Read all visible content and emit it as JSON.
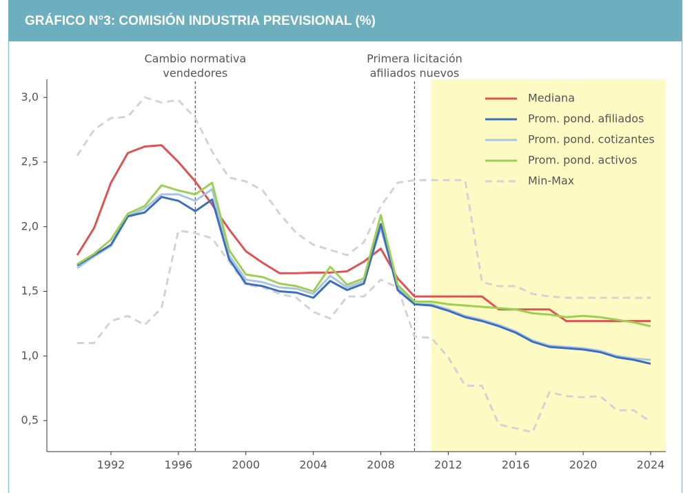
{
  "chart_data": {
    "type": "line",
    "title": "GRÁFICO N°3: COMISIÓN INDUSTRIA PREVISIONAL (%)",
    "x": [
      1990,
      1991,
      1992,
      1993,
      1994,
      1995,
      1996,
      1997,
      1998,
      1999,
      2000,
      2001,
      2002,
      2003,
      2004,
      2005,
      2006,
      2007,
      2008,
      2009,
      2010,
      2011,
      2012,
      2013,
      2014,
      2015,
      2016,
      2017,
      2018,
      2019,
      2020,
      2021,
      2022,
      2023,
      2024
    ],
    "xlim": [
      1988.2,
      2024.9
    ],
    "xticks": [
      1992,
      1996,
      2000,
      2004,
      2008,
      2012,
      2016,
      2020,
      2024
    ],
    "ylim": [
      0.26,
      3.14
    ],
    "yticks": [
      {
        "value": 0.5,
        "label": "0,5"
      },
      {
        "value": 1.0,
        "label": "1,0"
      },
      {
        "value": 1.5,
        "label": "1,5"
      },
      {
        "value": 2.0,
        "label": "2,0"
      },
      {
        "value": 2.5,
        "label": "2,5"
      },
      {
        "value": 3.0,
        "label": "3,0"
      }
    ],
    "series": [
      {
        "name": "Mediana",
        "color": "#e05152",
        "values": [
          1.78,
          1.99,
          2.34,
          2.57,
          2.62,
          2.63,
          2.5,
          2.35,
          2.17,
          1.98,
          1.81,
          1.72,
          1.64,
          1.64,
          1.645,
          1.645,
          1.655,
          1.73,
          1.83,
          1.6,
          1.46,
          1.46,
          1.46,
          1.46,
          1.46,
          1.36,
          1.36,
          1.36,
          1.36,
          1.27,
          1.27,
          1.27,
          1.27,
          1.27,
          1.27
        ]
      },
      {
        "name": "Prom. pond. afiliados",
        "color": "#3a6fbf",
        "values": [
          1.7,
          1.78,
          1.86,
          2.08,
          2.11,
          2.23,
          2.2,
          2.12,
          2.21,
          1.75,
          1.56,
          1.54,
          1.5,
          1.49,
          1.45,
          1.58,
          1.51,
          1.56,
          2.02,
          1.51,
          1.4,
          1.39,
          1.35,
          1.3,
          1.27,
          1.23,
          1.18,
          1.11,
          1.07,
          1.06,
          1.05,
          1.03,
          0.99,
          0.97,
          0.94
        ]
      },
      {
        "name": "Prom. pond. cotizantes",
        "color": "#a9c3e4",
        "values": [
          1.68,
          1.77,
          1.85,
          2.08,
          2.14,
          2.25,
          2.25,
          2.2,
          2.29,
          1.78,
          1.59,
          1.57,
          1.53,
          1.52,
          1.48,
          1.62,
          1.53,
          1.58,
          1.99,
          1.53,
          1.4,
          1.4,
          1.36,
          1.31,
          1.28,
          1.24,
          1.19,
          1.12,
          1.08,
          1.07,
          1.06,
          1.04,
          1.0,
          0.98,
          0.97
        ]
      },
      {
        "name": "Prom. pond. activos",
        "color": "#9dcf55",
        "values": [
          1.71,
          1.79,
          1.9,
          2.1,
          2.16,
          2.32,
          2.28,
          2.25,
          2.34,
          1.82,
          1.63,
          1.61,
          1.56,
          1.54,
          1.5,
          1.69,
          1.55,
          1.6,
          2.09,
          1.55,
          1.42,
          1.42,
          1.4,
          1.39,
          1.38,
          1.37,
          1.36,
          1.33,
          1.32,
          1.3,
          1.31,
          1.3,
          1.28,
          1.26,
          1.23
        ]
      },
      {
        "name": "Min-Max",
        "color": "#d3d3d6",
        "dashed": true,
        "values": [
          2.55,
          2.75,
          2.84,
          2.85,
          3.0,
          2.96,
          2.98,
          2.84,
          2.58,
          2.38,
          2.35,
          2.28,
          2.1,
          1.95,
          1.86,
          1.82,
          1.78,
          1.88,
          2.16,
          2.34,
          2.36,
          2.36,
          2.36,
          2.36,
          1.57,
          1.54,
          1.54,
          1.48,
          1.46,
          1.45,
          1.45,
          1.45,
          1.45,
          1.45,
          1.45
        ],
        "low": [
          1.1,
          1.1,
          1.27,
          1.31,
          1.24,
          1.37,
          1.97,
          1.95,
          1.91,
          1.73,
          1.55,
          1.53,
          1.48,
          1.45,
          1.34,
          1.29,
          1.46,
          1.46,
          1.59,
          1.53,
          1.15,
          1.14,
          0.99,
          0.77,
          0.77,
          0.47,
          0.44,
          0.41,
          0.72,
          0.69,
          0.68,
          0.69,
          0.58,
          0.58,
          0.49
        ]
      }
    ],
    "annotations": [
      {
        "x": 1997,
        "lines": [
          "Cambio normativa",
          "vendedores"
        ]
      },
      {
        "x": 2010,
        "lines": [
          "Primera licitación",
          "afiliados nuevos"
        ]
      }
    ],
    "shade": {
      "from": 2011,
      "to": 2024.9,
      "color": "#fdfbc3"
    },
    "legend": "top-right"
  }
}
